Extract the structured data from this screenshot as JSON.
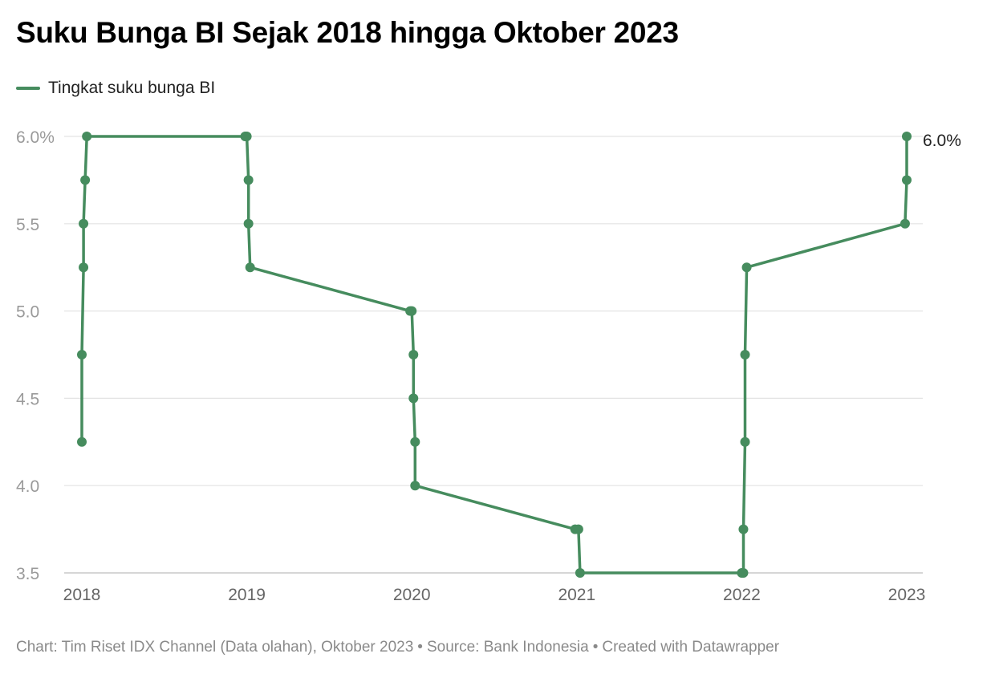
{
  "header": {
    "title": "Suku Bunga BI Sejak 2018 hingga Oktober 2023"
  },
  "footer": {
    "credit": "Chart: Tim Riset IDX Channel (Data olahan), Oktober 2023",
    "separator": "•",
    "source": "Source: Bank Indonesia",
    "tool": "Created with Datawrapper"
  },
  "chart_data": {
    "type": "line",
    "title": "Suku Bunga BI Sejak 2018 hingga Oktober 2023",
    "xlabel": "",
    "ylabel": "",
    "xlim": [
      2018,
      2023
    ],
    "ylim": [
      3.5,
      6.0
    ],
    "x_ticks": [
      2018,
      2019,
      2020,
      2021,
      2022,
      2023
    ],
    "x_tick_labels": [
      "2018",
      "2019",
      "2020",
      "2021",
      "2022",
      "2023"
    ],
    "y_ticks": [
      3.5,
      4.0,
      4.5,
      5.0,
      5.5,
      6.0
    ],
    "y_tick_labels": [
      "3.5",
      "4.0",
      "4.5",
      "5.0",
      "5.5",
      "6.0%"
    ],
    "grid": true,
    "legend": "top-left",
    "series": [
      {
        "name": "Tingkat suku bunga BI",
        "color": "#468c5e",
        "x": [
          2018.0,
          2018.0,
          2018.01,
          2018.01,
          2018.02,
          2018.03,
          2018.99,
          2019.0,
          2019.01,
          2019.01,
          2019.02,
          2019.99,
          2020.0,
          2020.01,
          2020.01,
          2020.02,
          2020.02,
          2020.99,
          2021.01,
          2021.02,
          2022.0,
          2022.01,
          2022.01,
          2022.02,
          2022.02,
          2022.03,
          2022.99,
          2023.0,
          2023.0
        ],
        "y": [
          4.25,
          4.75,
          5.25,
          5.5,
          5.75,
          6.0,
          6.0,
          6.0,
          5.75,
          5.5,
          5.25,
          5.0,
          5.0,
          4.75,
          4.5,
          4.25,
          4.0,
          3.75,
          3.75,
          3.5,
          3.5,
          3.5,
          3.75,
          4.25,
          4.75,
          5.25,
          5.5,
          5.75,
          6.0
        ]
      }
    ],
    "annotations": [
      {
        "text": "6.0%",
        "x": 2023.0,
        "y": 6.0
      }
    ]
  }
}
